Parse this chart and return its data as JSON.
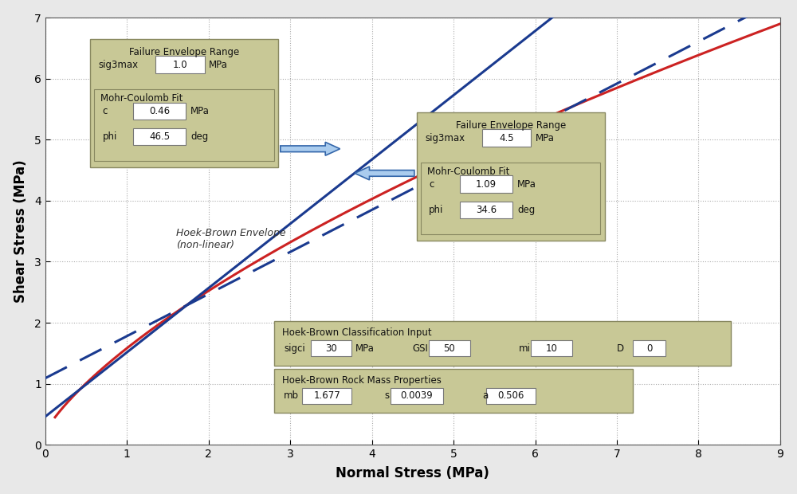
{
  "xlim": [
    0,
    9
  ],
  "ylim": [
    0,
    7
  ],
  "xlabel": "Normal Stress (MPa)",
  "ylabel": "Shear Stress (MPa)",
  "xticks": [
    0,
    1,
    2,
    3,
    4,
    5,
    6,
    7,
    8,
    9
  ],
  "yticks": [
    0,
    1,
    2,
    3,
    4,
    5,
    6,
    7
  ],
  "grid_color": "#aaaaaa",
  "bg_color": "#ffffff",
  "fig_bg": "#e8e8e8",
  "hb_color": "#cc2222",
  "mc_color": "#1a3a8f",
  "sigci": 30,
  "GSI": 50,
  "mi": 10,
  "D": 0,
  "mb": 1.677,
  "s": 0.0039,
  "a": 0.506,
  "mc1_c": 0.46,
  "mc1_phi_deg": 46.5,
  "mc2_c": 1.09,
  "mc2_phi_deg": 34.6,
  "box_fc": "#c8c896",
  "box_ec": "#888860",
  "white": "#ffffff",
  "dark": "#111111",
  "arrow_fc": "#aaccee",
  "arrow_ec": "#3366aa"
}
